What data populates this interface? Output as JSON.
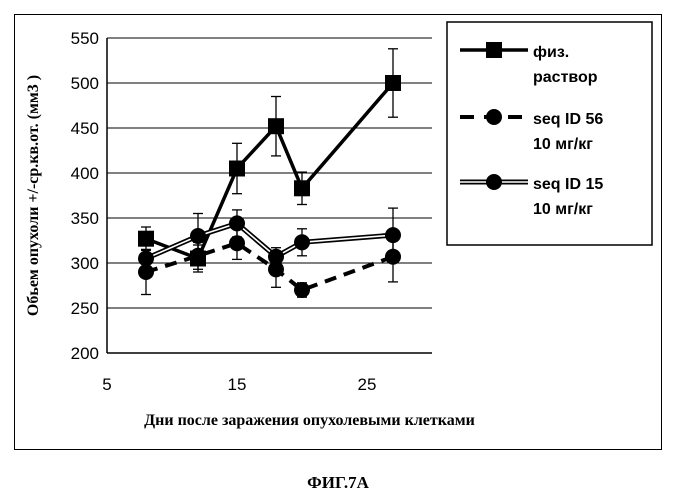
{
  "chart_data": {
    "type": "line",
    "xlabel": "Дни после заражения опухолевыми клетками",
    "ylabel": "Обьем опухоли +/-ср.кв.от. (мм3 )",
    "xlim": [
      5,
      30
    ],
    "ylim": [
      200,
      550
    ],
    "xticks": [
      5,
      15,
      25
    ],
    "yticks": [
      200,
      250,
      300,
      350,
      400,
      450,
      500,
      550
    ],
    "grid": "horizontal",
    "legend_position": "right",
    "series": [
      {
        "name": "физ. раствор",
        "legend_lines": [
          "физ.",
          "раствор"
        ],
        "marker": "square",
        "line_style": "solid",
        "x": [
          8,
          12,
          15,
          18,
          20,
          27
        ],
        "y": [
          327,
          305,
          405,
          452,
          383,
          500
        ],
        "err": [
          13,
          15,
          28,
          33,
          18,
          38
        ]
      },
      {
        "name": "seq ID 56 10 мг/кг",
        "legend_lines": [
          "seq ID 56",
          "10 мг/кг"
        ],
        "marker": "circle",
        "line_style": "dashed",
        "x": [
          8,
          12,
          15,
          18,
          20,
          27
        ],
        "y": [
          290,
          308,
          322,
          293,
          270,
          307
        ],
        "err": [
          25,
          15,
          18,
          20,
          8,
          28
        ]
      },
      {
        "name": "seq ID 15 10 мг/кг",
        "legend_lines": [
          "seq ID 15",
          "10 мг/кг"
        ],
        "marker": "circle",
        "line_style": "double",
        "x": [
          8,
          12,
          15,
          18,
          20,
          27
        ],
        "y": [
          305,
          330,
          344,
          307,
          323,
          331
        ],
        "err": [
          10,
          25,
          15,
          10,
          15,
          30
        ]
      }
    ]
  },
  "figure_caption": "ФИГ.7А"
}
